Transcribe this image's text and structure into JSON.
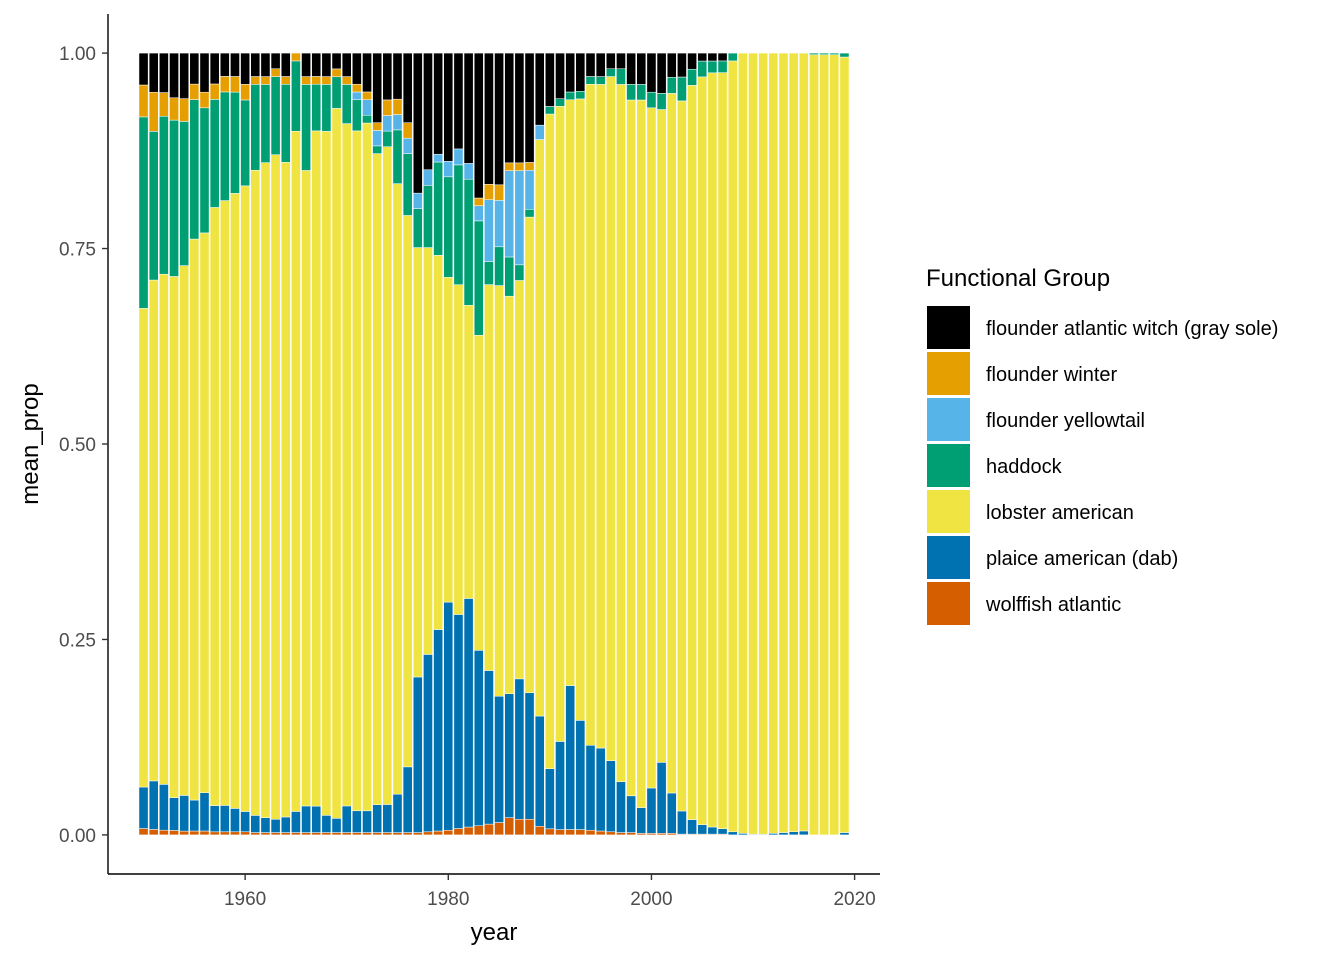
{
  "chart_data": {
    "type": "bar",
    "stacked": true,
    "title": "",
    "xlabel": "year",
    "ylabel": "mean_prop",
    "xlim": [
      1946.5,
      2022.5
    ],
    "ylim": [
      -0.05,
      1.05
    ],
    "x_ticks": [
      1960,
      1980,
      2000,
      2020
    ],
    "y_ticks": [
      0.0,
      0.25,
      0.5,
      0.75,
      1.0
    ],
    "x_tick_labels": [
      "1960",
      "1980",
      "2000",
      "2020"
    ],
    "y_tick_labels": [
      "0.00",
      "0.25",
      "0.50",
      "0.75",
      "1.00"
    ],
    "grid": false,
    "legend_position": "right",
    "legend_title": "Functional Group",
    "x": [
      1950,
      1951,
      1952,
      1953,
      1954,
      1955,
      1956,
      1957,
      1958,
      1959,
      1960,
      1961,
      1962,
      1963,
      1964,
      1965,
      1966,
      1967,
      1968,
      1969,
      1970,
      1971,
      1972,
      1973,
      1974,
      1975,
      1976,
      1977,
      1978,
      1979,
      1980,
      1981,
      1982,
      1983,
      1984,
      1985,
      1986,
      1987,
      1988,
      1989,
      1990,
      1991,
      1992,
      1993,
      1994,
      1995,
      1996,
      1997,
      1998,
      1999,
      2000,
      2001,
      2002,
      2003,
      2004,
      2005,
      2006,
      2007,
      2008,
      2009,
      2010,
      2011,
      2012,
      2013,
      2014,
      2015,
      2016,
      2017,
      2018,
      2019
    ],
    "series": [
      {
        "name": "wolffish atlantic",
        "color": "#D55E00",
        "values": [
          0.008,
          0.007,
          0.006,
          0.006,
          0.005,
          0.005,
          0.005,
          0.004,
          0.004,
          0.004,
          0.004,
          0.003,
          0.003,
          0.003,
          0.003,
          0.003,
          0.003,
          0.003,
          0.003,
          0.003,
          0.003,
          0.003,
          0.003,
          0.003,
          0.003,
          0.003,
          0.003,
          0.003,
          0.004,
          0.005,
          0.006,
          0.008,
          0.01,
          0.012,
          0.014,
          0.016,
          0.022,
          0.02,
          0.02,
          0.012,
          0.008,
          0.007,
          0.007,
          0.007,
          0.006,
          0.005,
          0.004,
          0.003,
          0.003,
          0.002,
          0.002,
          0.002,
          0.002,
          0.001,
          0.001,
          0.001,
          0.001,
          0.001,
          0,
          0,
          0,
          0,
          0,
          0,
          0,
          0,
          0,
          0,
          0,
          0
        ]
      },
      {
        "name": "plaice american (dab)",
        "color": "#0072B2",
        "values": [
          0.052,
          0.062,
          0.058,
          0.044,
          0.047,
          0.04,
          0.049,
          0.034,
          0.034,
          0.03,
          0.026,
          0.022,
          0.019,
          0.017,
          0.02,
          0.027,
          0.034,
          0.034,
          0.022,
          0.018,
          0.034,
          0.028,
          0.028,
          0.036,
          0.036,
          0.05,
          0.085,
          0.2,
          0.228,
          0.259,
          0.295,
          0.268,
          0.29,
          0.23,
          0.199,
          0.163,
          0.158,
          0.179,
          0.162,
          0.153,
          0.079,
          0.116,
          0.185,
          0.143,
          0.109,
          0.106,
          0.091,
          0.065,
          0.047,
          0.033,
          0.058,
          0.088,
          0.05,
          0.029,
          0.018,
          0.012,
          0.009,
          0.007,
          0.004,
          0.002,
          0.001,
          0.001,
          0.002,
          0.003,
          0.004,
          0.005,
          0,
          0,
          0,
          0.003
        ]
      },
      {
        "name": "lobster american",
        "color": "#F0E442",
        "values": [
          0.6,
          0.64,
          0.646,
          0.7,
          0.698,
          0.724,
          0.716,
          0.775,
          0.779,
          0.789,
          0.801,
          0.826,
          0.837,
          0.85,
          0.839,
          0.87,
          0.812,
          0.868,
          0.874,
          0.899,
          0.871,
          0.874,
          0.885,
          0.842,
          0.843,
          0.795,
          0.713,
          0.552,
          0.523,
          0.481,
          0.42,
          0.413,
          0.372,
          0.413,
          0.5,
          0.53,
          0.507,
          0.508,
          0.609,
          0.8,
          0.859,
          0.836,
          0.753,
          0.814,
          0.848,
          0.848,
          0.875,
          0.89,
          0.89,
          0.905,
          0.87,
          0.81,
          0.868,
          0.891,
          0.911,
          0.942,
          0.955,
          0.967,
          0.985,
          0.995,
          0.997,
          0.996,
          0.993,
          0.992,
          0.99,
          0.988,
          0.996,
          0.997,
          0.995,
          0.99
        ]
      },
      {
        "name": "haddock",
        "color": "#009E73",
        "values": [
          0.24,
          0.19,
          0.2,
          0.21,
          0.19,
          0.18,
          0.16,
          0.14,
          0.14,
          0.13,
          0.11,
          0.11,
          0.1,
          0.1,
          0.1,
          0.09,
          0.11,
          0.06,
          0.06,
          0.04,
          0.05,
          0.04,
          0.01,
          0.01,
          0.02,
          0.07,
          0.08,
          0.05,
          0.08,
          0.12,
          0.13,
          0.15,
          0.16,
          0.15,
          0.03,
          0.05,
          0.05,
          0.02,
          0.01,
          0,
          0.01,
          0.01,
          0.01,
          0.01,
          0.01,
          0.01,
          0.01,
          0.02,
          0.02,
          0.02,
          0.02,
          0.02,
          0.02,
          0.03,
          0.02,
          0.02,
          0.015,
          0.015,
          0.01,
          0,
          0,
          0,
          0,
          0,
          0,
          0,
          0.002,
          0.002,
          0.002,
          0.005
        ]
      },
      {
        "name": "flounder yellowtail",
        "color": "#56B4E9",
        "values": [
          0,
          0,
          0,
          0,
          0,
          0,
          0,
          0,
          0,
          0,
          0,
          0,
          0,
          0,
          0,
          0,
          0,
          0,
          0,
          0,
          0,
          0.01,
          0.02,
          0.02,
          0.02,
          0.02,
          0.02,
          0.02,
          0.02,
          0.01,
          0.02,
          0.02,
          0.02,
          0.02,
          0.08,
          0.06,
          0.11,
          0.12,
          0.05,
          0.02,
          0,
          0,
          0,
          0,
          0,
          0,
          0,
          0,
          0,
          0,
          0,
          0,
          0,
          0,
          0,
          0,
          0,
          0,
          0,
          0,
          0,
          0,
          0,
          0,
          0,
          0,
          0,
          0,
          0,
          0
        ]
      },
      {
        "name": "flounder winter",
        "color": "#E69F00",
        "values": [
          0.04,
          0.05,
          0.03,
          0.03,
          0.03,
          0.02,
          0.02,
          0.02,
          0.02,
          0.02,
          0.02,
          0.01,
          0.01,
          0.01,
          0.01,
          0.01,
          0.01,
          0.01,
          0.01,
          0.01,
          0.01,
          0.01,
          0.01,
          0.01,
          0.02,
          0.02,
          0.02,
          0,
          0,
          0,
          0,
          0,
          0,
          0.01,
          0.02,
          0.02,
          0.01,
          0.01,
          0.01,
          0,
          0,
          0,
          0,
          0,
          0,
          0,
          0,
          0,
          0,
          0,
          0,
          0,
          0,
          0,
          0,
          0,
          0,
          0,
          0,
          0,
          0,
          0,
          0,
          0,
          0,
          0,
          0,
          0,
          0,
          0
        ]
      },
      {
        "name": "flounder atlantic witch (gray sole)",
        "color": "#000000",
        "values": [
          0.04,
          0.05,
          0.05,
          0.06,
          0.06,
          0.04,
          0.05,
          0.04,
          0.03,
          0.03,
          0.04,
          0.03,
          0.03,
          0.02,
          0.03,
          0,
          0.03,
          0.03,
          0.03,
          0.02,
          0.03,
          0.04,
          0.05,
          0.09,
          0.06,
          0.06,
          0.09,
          0.18,
          0.15,
          0.13,
          0.14,
          0.12,
          0.14,
          0.19,
          0.17,
          0.17,
          0.14,
          0.14,
          0.14,
          0.1,
          0.07,
          0.06,
          0.05,
          0.05,
          0.03,
          0.03,
          0.02,
          0.02,
          0.04,
          0.04,
          0.05,
          0.05,
          0.03,
          0.03,
          0.02,
          0.01,
          0.01,
          0.01,
          0,
          0,
          0,
          0,
          0,
          0,
          0,
          0,
          0,
          0,
          0,
          0
        ]
      }
    ]
  }
}
